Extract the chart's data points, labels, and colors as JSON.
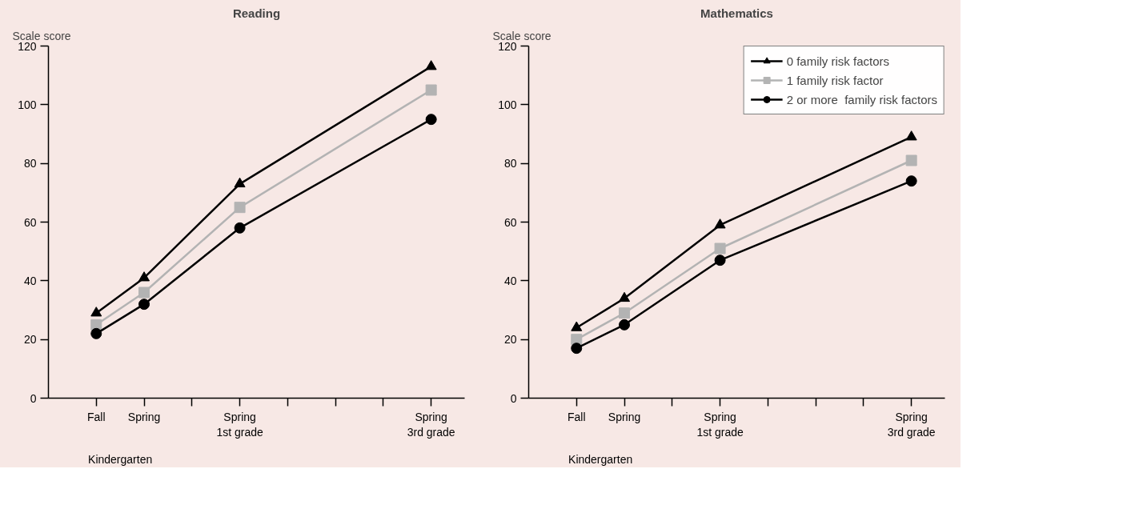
{
  "chart_data": [
    {
      "type": "line",
      "title": "Reading",
      "ylabel": "Scale score",
      "categories": [
        "Fall",
        "Spring",
        null,
        "Spring\n1st grade",
        null,
        null,
        null,
        "Spring\n3rd grade"
      ],
      "ylim": [
        0,
        120
      ],
      "yticks": [
        0,
        20,
        40,
        60,
        80,
        100,
        120
      ],
      "grid": false,
      "annotations": [
        "Kindergarten"
      ],
      "series": [
        {
          "color": "#000000",
          "marker": "triangle",
          "values": [
            29,
            41,
            null,
            73,
            null,
            null,
            null,
            113
          ]
        },
        {
          "color": "#b3b3b3",
          "marker": "square",
          "values": [
            25,
            36,
            null,
            65,
            null,
            null,
            null,
            105
          ]
        },
        {
          "color": "#000000",
          "marker": "circle",
          "values": [
            22,
            32,
            null,
            58,
            null,
            null,
            null,
            95
          ]
        }
      ]
    },
    {
      "type": "line",
      "title": "Mathematics",
      "ylabel": "Scale score",
      "categories": [
        "Fall",
        "Spring",
        null,
        "Spring\n1st grade",
        null,
        null,
        null,
        "Spring\n3rd grade"
      ],
      "ylim": [
        0,
        120
      ],
      "yticks": [
        0,
        20,
        40,
        60,
        80,
        100,
        120
      ],
      "grid": false,
      "legend": "top right",
      "annotations": [
        "Kindergarten"
      ],
      "series": [
        {
          "name": "0 family risk factors",
          "color": "#000000",
          "marker": "triangle",
          "values": [
            24,
            34,
            null,
            59,
            null,
            null,
            null,
            89
          ]
        },
        {
          "name": "1 family risk factor",
          "color": "#b3b3b3",
          "marker": "square",
          "values": [
            20,
            29,
            null,
            51,
            null,
            null,
            null,
            81
          ]
        },
        {
          "name": "2 or more  family risk factors",
          "color": "#000000",
          "marker": "circle",
          "values": [
            17,
            25,
            null,
            47,
            null,
            null,
            null,
            74
          ]
        }
      ]
    }
  ]
}
